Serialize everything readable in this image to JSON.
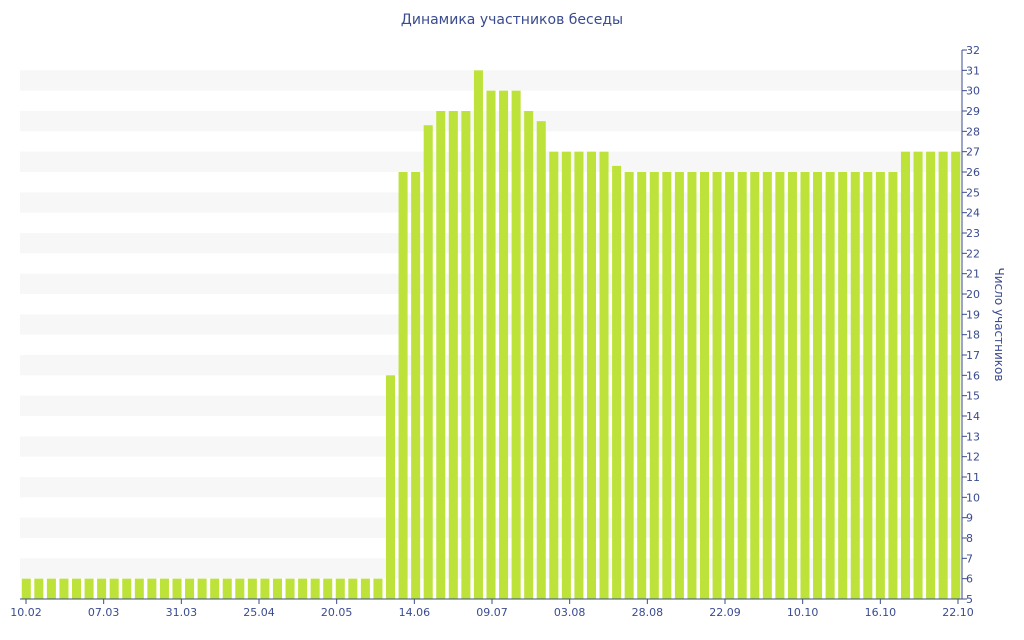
{
  "chart_data": {
    "type": "bar",
    "title": "Динамика участников беседы",
    "xlabel": "",
    "ylabel": "Число участников",
    "ylim": [
      5,
      32
    ],
    "yticks": [
      5,
      6,
      7,
      8,
      9,
      10,
      11,
      12,
      13,
      14,
      15,
      16,
      17,
      18,
      19,
      20,
      21,
      22,
      23,
      24,
      25,
      26,
      27,
      28,
      29,
      30,
      31,
      32
    ],
    "x_tick_labels": [
      "10.02",
      "07.03",
      "31.03",
      "25.04",
      "20.05",
      "14.06",
      "09.07",
      "03.08",
      "28.08",
      "22.09",
      "10.10",
      "16.10",
      "22.10"
    ],
    "values": [
      6,
      6,
      6,
      6,
      6,
      6,
      6,
      6,
      6,
      6,
      6,
      6,
      6,
      6,
      6,
      6,
      6,
      6,
      6,
      6,
      6,
      6,
      6,
      6,
      6,
      6,
      6,
      6,
      6,
      16,
      26,
      26,
      28.3,
      29,
      29,
      29,
      31,
      30,
      30,
      30,
      29,
      28.5,
      27,
      27,
      27,
      27,
      27,
      26.3,
      26,
      26,
      26,
      26,
      26,
      26,
      26,
      26,
      26,
      26,
      26,
      26,
      26,
      26,
      26,
      26,
      26,
      26,
      26,
      26,
      26,
      26,
      27,
      27,
      27,
      27,
      27
    ],
    "bar_color": "#bde33a",
    "band_color": "#f7f7f7",
    "grid": true,
    "y_axis_position": "right"
  }
}
